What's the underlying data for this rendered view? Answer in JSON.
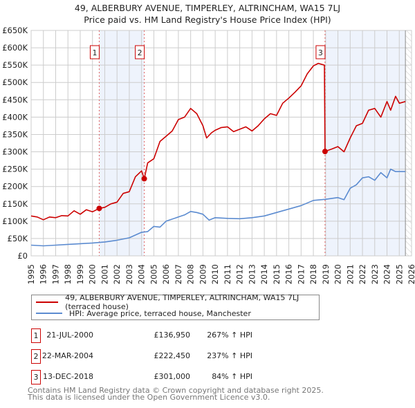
{
  "title": "49, ALBERBURY AVENUE, TIMPERLEY, ALTRINCHAM, WA15 7LJ",
  "subtitle": "Price paid vs. HM Land Registry's House Price Index (HPI)",
  "chart_data": {
    "type": "line",
    "title": "49, ALBERBURY AVENUE, TIMPERLEY, ALTRINCHAM, WA15 7LJ",
    "subtitle": "Price paid vs. HM Land Registry's House Price Index (HPI)",
    "xlim": [
      1995,
      2026
    ],
    "ylim": [
      0,
      650000
    ],
    "grid": true,
    "x_ticks": [
      "1995",
      "1996",
      "1997",
      "1998",
      "1999",
      "2000",
      "2001",
      "2002",
      "2003",
      "2004",
      "2005",
      "2006",
      "2007",
      "2008",
      "2009",
      "2010",
      "2011",
      "2012",
      "2013",
      "2014",
      "2015",
      "2016",
      "2017",
      "2018",
      "2019",
      "2020",
      "2021",
      "2022",
      "2023",
      "2024",
      "2025",
      "2026"
    ],
    "y_ticks": [
      {
        "value": 0,
        "label": "£0"
      },
      {
        "value": 50000,
        "label": "£50K"
      },
      {
        "value": 100000,
        "label": "£100K"
      },
      {
        "value": 150000,
        "label": "£150K"
      },
      {
        "value": 200000,
        "label": "£200K"
      },
      {
        "value": 250000,
        "label": "£250K"
      },
      {
        "value": 300000,
        "label": "£300K"
      },
      {
        "value": 350000,
        "label": "£350K"
      },
      {
        "value": 400000,
        "label": "£400K"
      },
      {
        "value": 450000,
        "label": "£450K"
      },
      {
        "value": 500000,
        "label": "£500K"
      },
      {
        "value": 550000,
        "label": "£550K"
      },
      {
        "value": 600000,
        "label": "£600K"
      },
      {
        "value": 650000,
        "label": "£650K"
      }
    ],
    "shaded_ranges": [
      [
        2000.55,
        2004.22
      ],
      [
        2018.95,
        2025.5
      ]
    ],
    "forecast_hatch_from": 2025.5,
    "series": [
      {
        "name": "49, ALBERBURY AVENUE, TIMPERLEY, ALTRINCHAM, WA15 7LJ (terraced house)",
        "color": "#cc0000",
        "x": [
          1995,
          1995.5,
          1996,
          1996.5,
          1997,
          1997.5,
          1998,
          1998.5,
          1999,
          1999.5,
          2000,
          2000.55,
          2001,
          2001.5,
          2002,
          2002.5,
          2003,
          2003.5,
          2004,
          2004.22,
          2004.5,
          2005,
          2005.5,
          2006,
          2006.5,
          2007,
          2007.5,
          2008,
          2008.5,
          2009,
          2009.3,
          2009.7,
          2010,
          2010.5,
          2011,
          2011.5,
          2012,
          2012.5,
          2013,
          2013.5,
          2014,
          2014.5,
          2015,
          2015.5,
          2016,
          2016.5,
          2017,
          2017.5,
          2018,
          2018.4,
          2018.9,
          2018.95,
          2019.5,
          2020,
          2020.5,
          2021,
          2021.5,
          2022,
          2022.5,
          2023,
          2023.5,
          2024,
          2024.3,
          2024.7,
          2025,
          2025.5
        ],
        "y": [
          115000,
          112000,
          104000,
          112000,
          110000,
          116000,
          115000,
          130000,
          120000,
          133000,
          127000,
          136950,
          140000,
          150000,
          155000,
          180000,
          185000,
          228000,
          245000,
          222450,
          268000,
          280000,
          330000,
          345000,
          360000,
          393000,
          400000,
          425000,
          410000,
          375000,
          340000,
          355000,
          362000,
          370000,
          372000,
          358000,
          365000,
          372000,
          360000,
          375000,
          395000,
          410000,
          405000,
          440000,
          455000,
          472000,
          490000,
          525000,
          548000,
          555000,
          550000,
          301000,
          308000,
          315000,
          300000,
          340000,
          375000,
          382000,
          420000,
          425000,
          400000,
          445000,
          420000,
          460000,
          440000,
          445000
        ]
      },
      {
        "name": "HPI: Average price, terraced house, Manchester",
        "color": "#5b8bd0",
        "x": [
          1995,
          1996,
          1997,
          1998,
          1999,
          2000,
          2001,
          2002,
          2003,
          2004,
          2004.5,
          2005,
          2005.5,
          2006,
          2007,
          2007.5,
          2008,
          2008.5,
          2009,
          2009.5,
          2010,
          2011,
          2012,
          2013,
          2014,
          2015,
          2016,
          2017,
          2018,
          2019,
          2020,
          2020.5,
          2021,
          2021.5,
          2022,
          2022.5,
          2023,
          2023.5,
          2024,
          2024.3,
          2024.7,
          2025,
          2025.5
        ],
        "y": [
          31000,
          29000,
          31000,
          33000,
          35000,
          37000,
          40000,
          45000,
          52000,
          68000,
          70000,
          85000,
          83000,
          100000,
          112000,
          118000,
          128000,
          125000,
          120000,
          103000,
          110000,
          108000,
          107000,
          110000,
          115000,
          125000,
          135000,
          145000,
          160000,
          163000,
          168000,
          162000,
          195000,
          205000,
          225000,
          228000,
          218000,
          240000,
          225000,
          250000,
          243000,
          243000,
          243000
        ]
      }
    ],
    "annotations": [
      {
        "label": "1",
        "x": 2000.55,
        "y": 136950
      },
      {
        "label": "2",
        "x": 2004.22,
        "y": 222450
      },
      {
        "label": "3",
        "x": 2018.95,
        "y": 301000
      }
    ]
  },
  "legend": [
    {
      "label": "49, ALBERBURY AVENUE, TIMPERLEY, ALTRINCHAM, WA15 7LJ (terraced house)",
      "color": "#cc0000"
    },
    {
      "label": "HPI: Average price, terraced house, Manchester",
      "color": "#5b8bd0"
    }
  ],
  "transactions": [
    {
      "num": "1",
      "date": "21-JUL-2000",
      "price": "£136,950",
      "hpi": "267% ↑ HPI"
    },
    {
      "num": "2",
      "date": "22-MAR-2004",
      "price": "£222,450",
      "hpi": "237% ↑ HPI"
    },
    {
      "num": "3",
      "date": "13-DEC-2018",
      "price": "£301,000",
      "hpi": "84% ↑ HPI"
    }
  ],
  "footer": {
    "line1": "Contains HM Land Registry data © Crown copyright and database right 2025.",
    "line2": "This data is licensed under the Open Government Licence v3.0."
  }
}
